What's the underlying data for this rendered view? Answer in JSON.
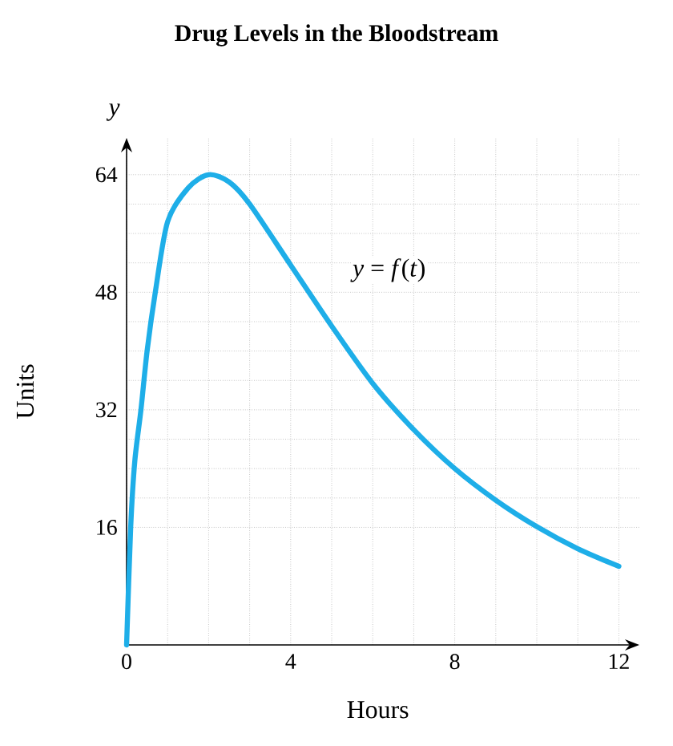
{
  "chart_data": {
    "type": "line",
    "title": "Drug Levels in the Bloodstream",
    "xlabel": "Hours",
    "ylabel": "Units",
    "annotations": [
      "*y* = *f*(*t*)",
      "*y*"
    ],
    "x": [
      0,
      0.1,
      0.2,
      0.35,
      0.5,
      0.7,
      1,
      1.5,
      2,
      2.5,
      3,
      4,
      5,
      6,
      7,
      8,
      9,
      10,
      11,
      12
    ],
    "series": [
      {
        "color": "#1eaee8",
        "values": [
          0,
          16,
          25,
          32,
          40,
          48,
          57.6,
          62.2,
          64,
          63,
          60,
          51.7,
          43.4,
          35.6,
          29.3,
          24,
          19.7,
          16.1,
          13.1,
          10.7
        ]
      }
    ],
    "xlim": [
      0,
      12.5
    ],
    "ylim": [
      0,
      69
    ],
    "xticks": [
      0,
      4,
      8,
      12
    ],
    "yticks": [
      16,
      32,
      48,
      64
    ],
    "grid": true,
    "marker": "none",
    "line_style": "solid"
  }
}
